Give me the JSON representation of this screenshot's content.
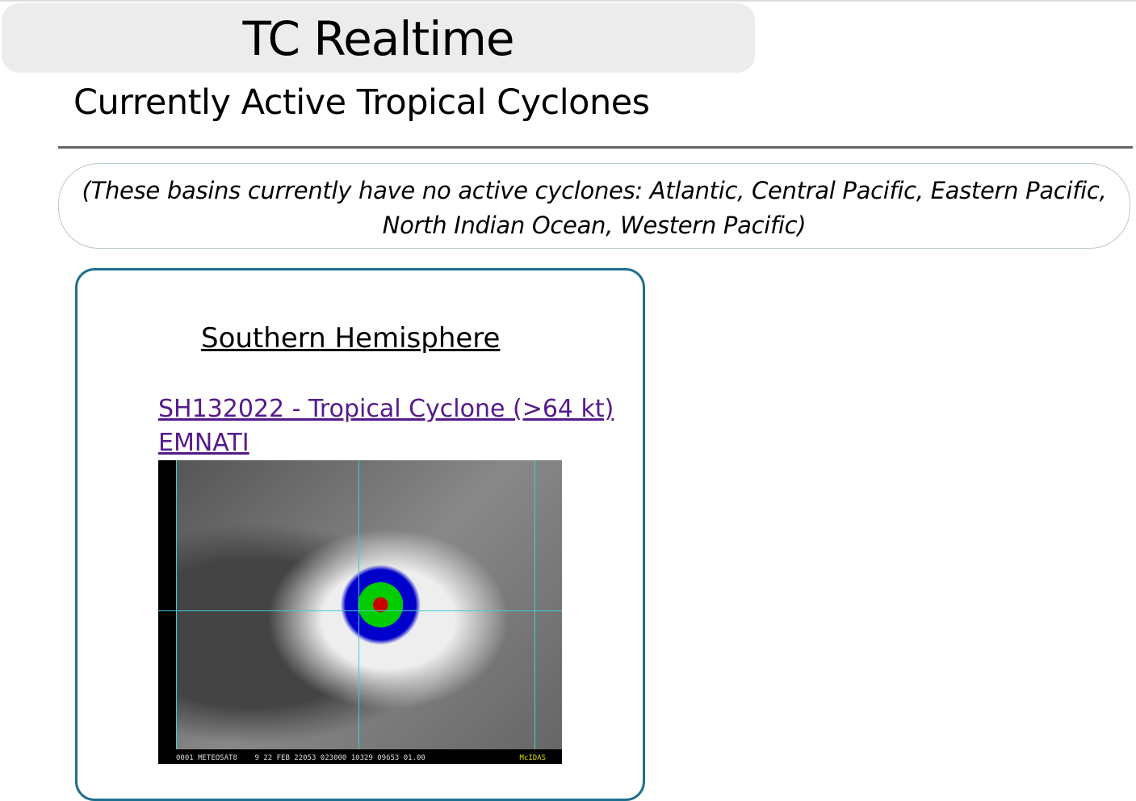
{
  "header": {
    "title": "TC Realtime"
  },
  "page": {
    "subtitle": "Currently Active Tropical Cyclones"
  },
  "notice": {
    "text": "(These basins currently have no active cyclones: Atlantic, Central Pacific, Eastern Pacific, North Indian Ocean, Western Pacific)"
  },
  "panel": {
    "basin": "Southern Hemisphere",
    "storm": {
      "id_line": "SH132022 - Tropical Cyclone (>64 kt)",
      "name": "EMNATI"
    },
    "image": {
      "caption": "0001 METEOSAT8    9 22 FEB 22053 023000 10329 09653 01.00",
      "brand": "McIDAS"
    }
  }
}
